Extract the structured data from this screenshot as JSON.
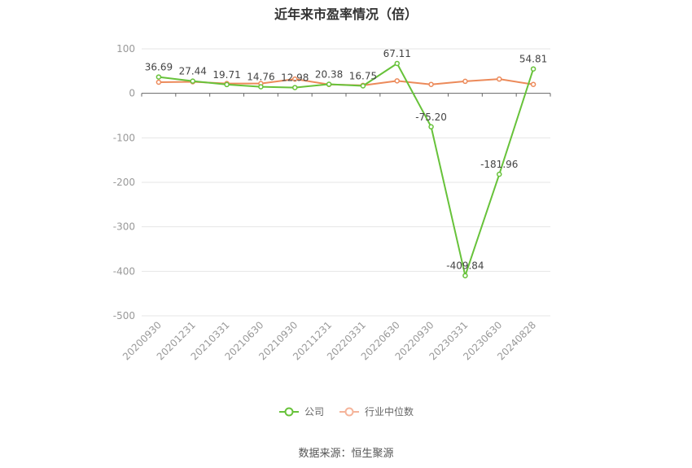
{
  "chart_data": {
    "type": "line",
    "title": "近年来市盈率情况（倍）",
    "categories": [
      "20200930",
      "20201231",
      "20210331",
      "20210630",
      "20210930",
      "20211231",
      "20220331",
      "20220630",
      "20220930",
      "20230331",
      "20230630",
      "20240828"
    ],
    "series": [
      {
        "name": "公司",
        "color": "#67c23a",
        "values": [
          36.69,
          27.44,
          19.71,
          14.76,
          12.98,
          20.38,
          16.75,
          67.11,
          -75.2,
          -409.84,
          -181.96,
          54.81
        ],
        "labels": [
          "36.69",
          "27.44",
          "19.71",
          "14.76",
          "12.98",
          "20.38",
          "16.75",
          "67.11",
          "-75.20",
          "-409.84",
          "-181.96",
          "54.81"
        ]
      },
      {
        "name": "行业中位数",
        "color": "#ec8a5a",
        "values": [
          25,
          26,
          22,
          22,
          32,
          20,
          18,
          28,
          20,
          27,
          32,
          20
        ]
      }
    ],
    "y_ticks": [
      100,
      0,
      -100,
      -200,
      -300,
      -400,
      -500
    ],
    "ylim": [
      -500,
      100
    ],
    "grid": true,
    "legend": "bottom-center",
    "source": "数据来源：恒生聚源"
  }
}
